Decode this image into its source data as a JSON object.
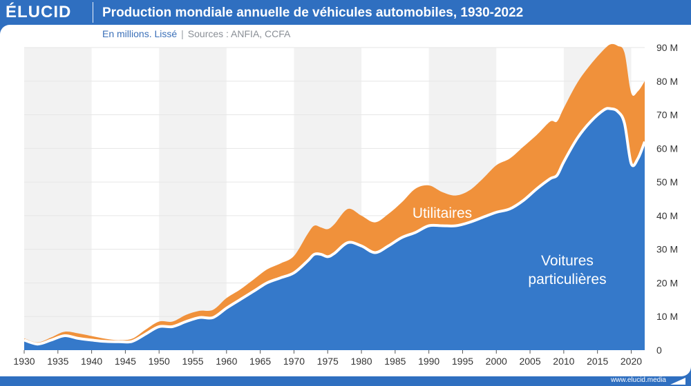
{
  "brand": {
    "logo": "ÉLUCID",
    "website": "www.elucid.media"
  },
  "header": {
    "title": "Production mondiale annuelle de véhicules automobiles, 1930-2022"
  },
  "subtitle": {
    "units": "En millions. Lissé",
    "separator": "|",
    "sources": "Sources : ANFIA, CCFA"
  },
  "colors": {
    "brand_blue": "#2f6fc0",
    "cars": "#3579ca",
    "commercial": "#f0913b",
    "band": "#f2f2f2",
    "grid": "#e6e6e6"
  },
  "chart_data": {
    "type": "area",
    "stacked": true,
    "title": "Production mondiale annuelle de véhicules automobiles, 1930-2022",
    "subtitle": "En millions. Lissé",
    "xlabel": "",
    "ylabel": "",
    "xlim": [
      1930,
      2022
    ],
    "ylim": [
      0,
      90
    ],
    "x_ticks": [
      1930,
      1935,
      1940,
      1945,
      1950,
      1955,
      1960,
      1965,
      1970,
      1975,
      1980,
      1985,
      1990,
      1995,
      2000,
      2005,
      2010,
      2015,
      2020
    ],
    "x_tick_labels": [
      "1930",
      "1935",
      "1940",
      "1945",
      "1950",
      "1955",
      "1960",
      "1965",
      "1970",
      "1975",
      "1980",
      "1985",
      "1990",
      "1995",
      "2000",
      "2005",
      "2010",
      "2015",
      "2020"
    ],
    "y_ticks": [
      0,
      10,
      20,
      30,
      40,
      50,
      60,
      70,
      80,
      90
    ],
    "y_tick_labels": [
      "0",
      "10 M",
      "20 M",
      "30 M",
      "40 M",
      "50 M",
      "60 M",
      "70 M",
      "80 M",
      "90 M"
    ],
    "shaded_bands": [
      [
        1930,
        1940
      ],
      [
        1950,
        1960
      ],
      [
        1970,
        1980
      ],
      [
        1990,
        2000
      ],
      [
        2010,
        2020
      ]
    ],
    "x": [
      1930,
      1932,
      1934,
      1936,
      1938,
      1940,
      1942,
      1944,
      1946,
      1948,
      1950,
      1952,
      1954,
      1956,
      1958,
      1960,
      1962,
      1964,
      1966,
      1968,
      1970,
      1972,
      1973,
      1974,
      1975,
      1976,
      1978,
      1980,
      1982,
      1984,
      1986,
      1988,
      1990,
      1992,
      1994,
      1996,
      1998,
      2000,
      2002,
      2004,
      2006,
      2008,
      2009,
      2010,
      2012,
      2014,
      2016,
      2017,
      2018,
      2019,
      2020,
      2021,
      2022
    ],
    "series": [
      {
        "name": "Voitures particulières",
        "values": [
          3.0,
          1.8,
          3.0,
          4.3,
          3.5,
          3.0,
          2.6,
          2.5,
          2.6,
          4.8,
          7.0,
          7.0,
          8.5,
          9.7,
          9.7,
          12.5,
          15.0,
          17.5,
          20.0,
          21.5,
          23.0,
          26.5,
          28.5,
          28.5,
          27.8,
          28.8,
          32.0,
          31.0,
          29.0,
          31.0,
          33.5,
          35.0,
          37.0,
          37.0,
          37.0,
          38.0,
          39.5,
          41.0,
          42.0,
          44.5,
          48.0,
          51.0,
          52.0,
          56.0,
          63.0,
          68.0,
          71.5,
          71.8,
          71.0,
          67.5,
          55.5,
          57.0,
          62.0
        ]
      },
      {
        "name": "Utilitaires",
        "values": [
          0.5,
          0.5,
          0.8,
          1.2,
          1.5,
          1.2,
          0.8,
          0.5,
          0.8,
          1.3,
          1.5,
          1.5,
          2.0,
          2.0,
          2.3,
          3.0,
          3.0,
          3.5,
          4.0,
          4.3,
          5.0,
          8.0,
          8.5,
          8.0,
          8.2,
          8.7,
          10.0,
          9.0,
          9.0,
          9.5,
          10.5,
          13.0,
          12.0,
          10.0,
          9.0,
          9.5,
          11.5,
          14.0,
          15.0,
          16.0,
          16.0,
          17.0,
          16.0,
          16.0,
          16.5,
          17.0,
          18.0,
          19.2,
          19.5,
          21.0,
          21.0,
          20.0,
          18.0
        ]
      }
    ],
    "annotations": [
      {
        "text": "Utilitaires",
        "series": "Utilitaires"
      },
      {
        "text": "Voitures",
        "series": "Voitures particulières"
      },
      {
        "text": "particulières",
        "series": "Voitures particulières"
      }
    ]
  }
}
